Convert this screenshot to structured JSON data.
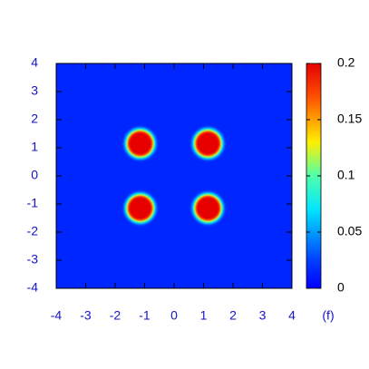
{
  "chart_data": {
    "type": "heatmap",
    "annotation": "(f)",
    "colormap": "jet",
    "xlim": [
      -4,
      4
    ],
    "xticks": [
      -4,
      -3,
      -2,
      -1,
      0,
      1,
      2,
      3,
      4
    ],
    "ylim": [
      -4,
      4
    ],
    "yticks": [
      -4,
      -3,
      -2,
      -1,
      0,
      1,
      2,
      3,
      4
    ],
    "clim": [
      0,
      0.2
    ],
    "cticks": [
      0,
      0.05,
      0.1,
      0.15,
      0.2
    ],
    "background_value": 0.015,
    "peaks": [
      {
        "x": -1.15,
        "y": 1.15,
        "value": 0.2
      },
      {
        "x": 1.15,
        "y": 1.15,
        "value": 0.2
      },
      {
        "x": -1.15,
        "y": -1.15,
        "value": 0.2
      },
      {
        "x": 1.15,
        "y": -1.15,
        "value": 0.2
      }
    ]
  }
}
